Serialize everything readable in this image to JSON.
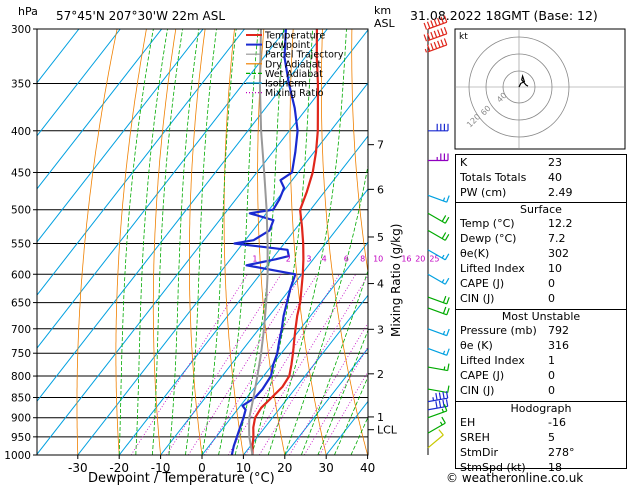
{
  "header": {
    "location": "57°45'N  207°30'W  22m  ASL",
    "datetime": "31.08.2022  18GMT  (Base: 12)",
    "hpa_label": "hPa",
    "km_label": "km",
    "asl_label": "ASL",
    "mixing_axis_label": "Mixing Ratio (g/kg)",
    "x_axis_label": "Dewpoint / Temperature (°C)",
    "credit": "© weatheronline.co.uk"
  },
  "legend": [
    {
      "label": "Temperature",
      "color": "#e0261b"
    },
    {
      "label": "Dewpoint",
      "color": "#1a2ad0"
    },
    {
      "label": "Parcel Trajectory",
      "color": "#999999"
    },
    {
      "label": "Dry Adiabat",
      "color": "#f08000"
    },
    {
      "label": "Wet Adiabat",
      "color": "#00aa00"
    },
    {
      "label": "Isotherm",
      "color": "#00a0e0"
    },
    {
      "label": "Mixing Ratio",
      "color": "#c000c0"
    }
  ],
  "chart_data": {
    "type": "line",
    "title": "57°45'N  207°30'W  22m  ASL",
    "xlabel": "Dewpoint / Temperature (°C)",
    "ylabel": "hPa",
    "x_ticks": [
      -30,
      -20,
      -10,
      0,
      10,
      20,
      30,
      40
    ],
    "xlim": [
      -35,
      40
    ],
    "y_ticks": [
      300,
      350,
      400,
      450,
      500,
      550,
      600,
      650,
      700,
      750,
      800,
      850,
      900,
      950,
      1000
    ],
    "ylim": [
      1000,
      300
    ],
    "skew": true,
    "km_ticks": [
      {
        "p": 416,
        "label": "7"
      },
      {
        "p": 472,
        "label": "6"
      },
      {
        "p": 540,
        "label": "5"
      },
      {
        "p": 616,
        "label": "4"
      },
      {
        "p": 701,
        "label": "3"
      },
      {
        "p": 795,
        "label": "2"
      },
      {
        "p": 898,
        "label": "1"
      },
      {
        "p": 931,
        "label": "LCL"
      }
    ],
    "mixing_ratio_labels": [
      "1",
      "2",
      "3",
      "4",
      "6",
      "8",
      "10",
      "16",
      "20",
      "25"
    ],
    "mixing_ratio_values": [
      1,
      2,
      3,
      4,
      6,
      8,
      10,
      16,
      20,
      25
    ],
    "mixing_ratio_label_p": 580,
    "series": [
      {
        "name": "Temperature",
        "color": "#e0261b",
        "p": [
          1000,
          975,
          950,
          925,
          900,
          875,
          850,
          825,
          800,
          775,
          750,
          725,
          700,
          675,
          650,
          625,
          600,
          575,
          550,
          525,
          500,
          475,
          450,
          425,
          400,
          375,
          350,
          325,
          300
        ],
        "t": [
          12.2,
          10.5,
          9.0,
          7.2,
          5.8,
          5.4,
          6.0,
          6.6,
          6.2,
          4.6,
          2.8,
          0.8,
          -1.2,
          -3.2,
          -5.0,
          -7.3,
          -9.7,
          -12.4,
          -15.4,
          -18.8,
          -22.5,
          -24.3,
          -26.5,
          -29.5,
          -33.1,
          -37.4,
          -42.0,
          -47.2,
          -52.5
        ]
      },
      {
        "name": "Dewpoint",
        "color": "#1a2ad0",
        "p": [
          1000,
          975,
          950,
          925,
          900,
          880,
          870,
          850,
          830,
          800,
          775,
          750,
          725,
          700,
          675,
          650,
          625,
          600,
          585,
          575,
          570,
          560,
          550,
          545,
          530,
          515,
          505,
          500,
          485,
          470,
          460,
          450,
          425,
          400,
          375,
          350,
          325,
          300
        ],
        "t": [
          7.2,
          6.0,
          5.0,
          4.0,
          3.0,
          2.0,
          0.5,
          2.0,
          2.2,
          1.8,
          0.2,
          -1.0,
          -2.8,
          -4.5,
          -6.5,
          -8.2,
          -10.0,
          -11.5,
          -25.0,
          -19.0,
          -16.5,
          -18.0,
          -32.0,
          -28.0,
          -26.0,
          -27.0,
          -34.0,
          -29.0,
          -29.5,
          -30.5,
          -32.8,
          -31.5,
          -34.5,
          -38.0,
          -43.0,
          -49.0,
          -55.0,
          -60.0
        ]
      },
      {
        "name": "Parcel Trajectory",
        "color": "#999999",
        "p": [
          1000,
          950,
          931,
          900,
          850,
          800,
          750,
          700,
          650,
          600,
          550,
          500,
          450,
          400,
          350,
          300
        ],
        "t": [
          12.2,
          8.0,
          6.6,
          4.4,
          1.6,
          -1.5,
          -4.9,
          -8.8,
          -13.2,
          -18.2,
          -24.0,
          -30.6,
          -38.2,
          -46.8,
          -56.0,
          -66.0
        ]
      }
    ]
  },
  "hodograph": {
    "label": "kt",
    "rings": [
      "40",
      "60",
      "120"
    ],
    "u": [
      0,
      2,
      6,
      4,
      3,
      8,
      10
    ],
    "v": [
      0,
      4,
      6,
      12,
      8,
      2,
      1
    ]
  },
  "indices": {
    "rows": [
      {
        "k": "K",
        "v": "23"
      },
      {
        "k": "Totals Totals",
        "v": "40"
      },
      {
        "k": "PW (cm)",
        "v": "2.49"
      }
    ],
    "surface": {
      "title": "Surface",
      "rows": [
        {
          "k": "Temp (°C)",
          "v": "12.2"
        },
        {
          "k": "Dewp (°C)",
          "v": "7.2"
        },
        {
          "k": "θe(K)",
          "v": "302"
        },
        {
          "k": "Lifted Index",
          "v": "10"
        },
        {
          "k": "CAPE (J)",
          "v": "0"
        },
        {
          "k": "CIN (J)",
          "v": "0"
        }
      ]
    },
    "most_unstable": {
      "title": "Most Unstable",
      "rows": [
        {
          "k": "Pressure (mb)",
          "v": "792"
        },
        {
          "k": "θe (K)",
          "v": "316"
        },
        {
          "k": "Lifted Index",
          "v": "1"
        },
        {
          "k": "CAPE (J)",
          "v": "0"
        },
        {
          "k": "CIN (J)",
          "v": "0"
        }
      ]
    },
    "hodo": {
      "title": "Hodograph",
      "rows": [
        {
          "k": "EH",
          "v": "-16"
        },
        {
          "k": "SREH",
          "v": "5"
        },
        {
          "k": "StmDir",
          "v": "278°"
        },
        {
          "k": "StmSpd (kt)",
          "v": "18"
        }
      ]
    }
  },
  "winds": [
    {
      "p": 300,
      "dir": 250,
      "spd": 70,
      "color": "#e0261b"
    },
    {
      "p": 310,
      "dir": 250,
      "spd": 70,
      "color": "#e0261b"
    },
    {
      "p": 320,
      "dir": 250,
      "spd": 65,
      "color": "#e0261b"
    },
    {
      "p": 400,
      "dir": 270,
      "spd": 40,
      "color": "#1a2ad0"
    },
    {
      "p": 435,
      "dir": 270,
      "spd": 35,
      "color": "#9000c0"
    },
    {
      "p": 480,
      "dir": 290,
      "spd": 15,
      "color": "#00a0e0"
    },
    {
      "p": 505,
      "dir": 300,
      "spd": 20,
      "color": "#00aa00"
    },
    {
      "p": 530,
      "dir": 300,
      "spd": 20,
      "color": "#00aa00"
    },
    {
      "p": 560,
      "dir": 300,
      "spd": 15,
      "color": "#00a0e0"
    },
    {
      "p": 600,
      "dir": 300,
      "spd": 15,
      "color": "#00a0e0"
    },
    {
      "p": 640,
      "dir": 290,
      "spd": 20,
      "color": "#00aa00"
    },
    {
      "p": 660,
      "dir": 290,
      "spd": 20,
      "color": "#00aa00"
    },
    {
      "p": 700,
      "dir": 290,
      "spd": 15,
      "color": "#00a0e0"
    },
    {
      "p": 740,
      "dir": 290,
      "spd": 15,
      "color": "#00a0e0"
    },
    {
      "p": 780,
      "dir": 280,
      "spd": 15,
      "color": "#00aa00"
    },
    {
      "p": 830,
      "dir": 280,
      "spd": 10,
      "color": "#00aa00"
    },
    {
      "p": 860,
      "dir": 260,
      "spd": 45,
      "color": "#1a2ad0"
    },
    {
      "p": 880,
      "dir": 260,
      "spd": 40,
      "color": "#1a2ad0"
    },
    {
      "p": 900,
      "dir": 250,
      "spd": 15,
      "color": "#00aa00"
    },
    {
      "p": 940,
      "dir": 240,
      "spd": 15,
      "color": "#00aa00"
    },
    {
      "p": 980,
      "dir": 230,
      "spd": 10,
      "color": "#c8c800"
    }
  ]
}
